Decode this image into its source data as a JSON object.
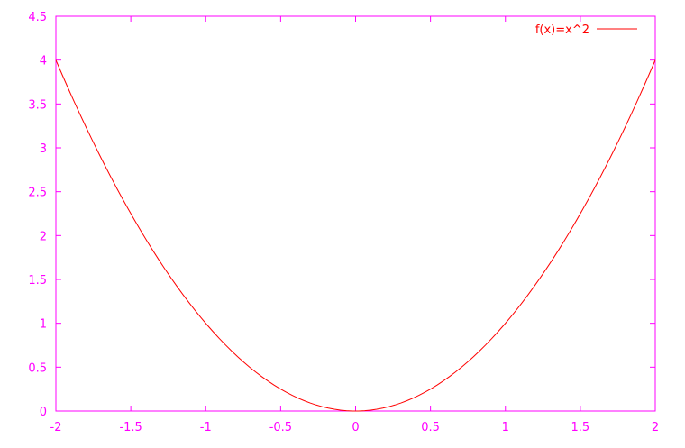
{
  "chart_data": {
    "type": "line",
    "title": "",
    "xlabel": "",
    "ylabel": "",
    "xlim": [
      -2,
      2
    ],
    "ylim": [
      0,
      4.5
    ],
    "xticks": [
      "-2",
      "-1.5",
      "-1",
      "-0.5",
      "0",
      "0.5",
      "1",
      "1.5",
      "2"
    ],
    "yticks": [
      "0",
      "0.5",
      "1",
      "1.5",
      "2",
      "2.5",
      "3",
      "3.5",
      "4",
      "4.5"
    ],
    "grid": false,
    "legend_position": "top-right",
    "series": [
      {
        "name": "f(x)=x^2",
        "function": "x^2",
        "samples": 100,
        "color": "#ff0000"
      }
    ],
    "colors": {
      "axes": "#ff00ff",
      "series": "#ff0000"
    }
  }
}
